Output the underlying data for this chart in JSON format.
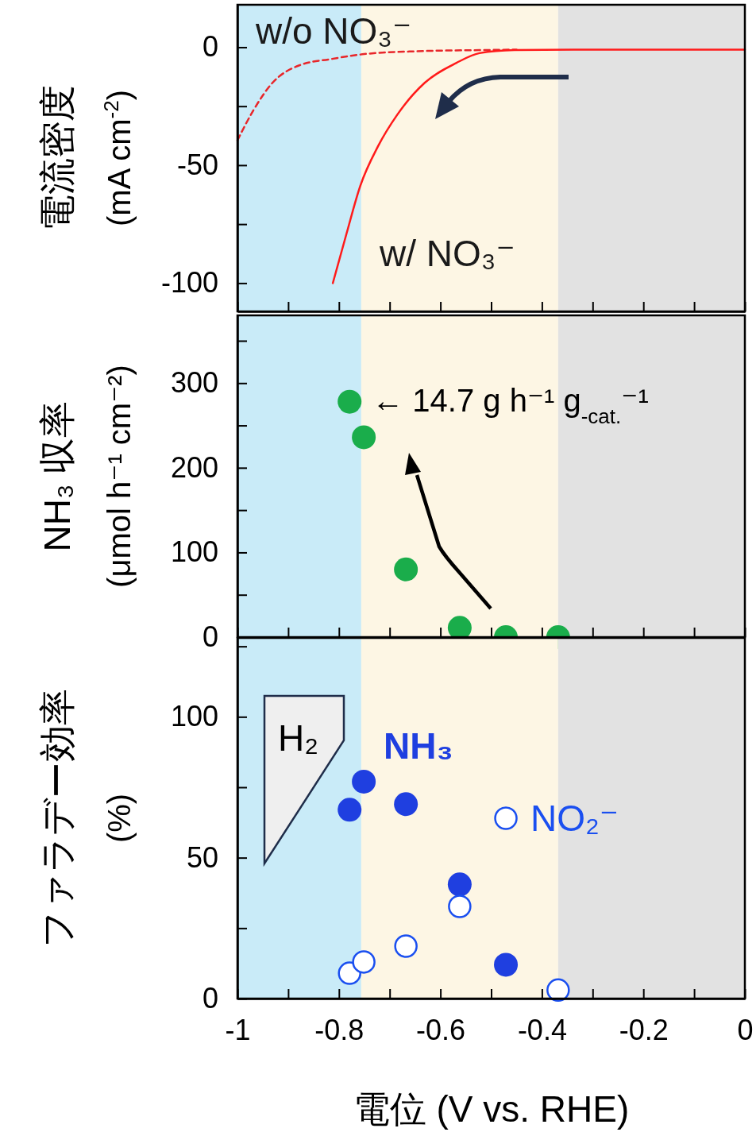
{
  "chart_data": [
    {
      "type": "line",
      "ylabel": "電流密度\n(mA cm$^{-2}$)",
      "xlim": [
        -1,
        0
      ],
      "ylim": [
        -112,
        18
      ],
      "tick_labels": "y",
      "xticks": [
        -1,
        {
          "value": -0.9,
          "label": null
        },
        -0.8,
        {
          "value": -0.7,
          "label": null
        },
        -0.6,
        {
          "value": -0.5,
          "label": null
        },
        -0.4,
        {
          "value": -0.3,
          "label": null
        },
        -0.2,
        {
          "value": -0.1,
          "label": null
        },
        0
      ],
      "yticks": [
        -100,
        {
          "value": -75,
          "label": null
        },
        -50,
        {
          "value": -25,
          "label": null
        },
        0
      ],
      "bands": [
        {
          "axis": "x",
          "from": -1,
          "to": -0.756,
          "color": "#c9ebf8"
        },
        {
          "axis": "x",
          "from": -0.756,
          "to": -0.368,
          "color": "#fdf6e4"
        },
        {
          "axis": "x",
          "from": -0.368,
          "to": 0,
          "color": "#e2e2e2"
        }
      ],
      "series": [
        {
          "name": "w/o NO₃⁻",
          "color": "#e8262a",
          "line_style": "dashed",
          "x": [
            -1,
            -0.969,
            -0.931,
            -0.877,
            -0.815,
            -0.754,
            -0.646,
            -0.515,
            -0.45
          ],
          "values": [
            -39.5,
            -26.9,
            -15.1,
            -7.6,
            -5,
            -3,
            -1.7,
            -1.2,
            -1
          ]
        },
        {
          "name": "w/ NO₃⁻",
          "color": "#ff1a1a",
          "line_style": "solid",
          "x": [
            -0.812,
            -0.785,
            -0.758,
            -0.723,
            -0.685,
            -0.631,
            -0.569,
            -0.523,
            -0.454,
            -0.338,
            0
          ],
          "values": [
            -100,
            -79,
            -58.8,
            -42,
            -28.6,
            -15.1,
            -6.7,
            -2.5,
            -1.2,
            -1,
            -1
          ]
        }
      ]
    },
    {
      "type": "scatter",
      "ylabel": "NH₃ 収率\n(μmol h⁻¹ cm⁻²)",
      "xlim": [
        -1,
        0
      ],
      "ylim": [
        0,
        380
      ],
      "tick_labels": "y",
      "marker": "circle",
      "xticks": [
        -1,
        {
          "value": -0.9,
          "label": null
        },
        -0.8,
        {
          "value": -0.7,
          "label": null
        },
        -0.6,
        {
          "value": -0.5,
          "label": null
        },
        -0.4,
        {
          "value": -0.3,
          "label": null
        },
        -0.2,
        {
          "value": -0.1,
          "label": null
        },
        0
      ],
      "yticks": [
        0,
        {
          "value": 50,
          "label": null
        },
        100,
        {
          "value": 150,
          "label": null
        },
        200,
        {
          "value": 250,
          "label": null
        },
        300,
        {
          "value": 350,
          "label": null
        }
      ],
      "bands": [
        {
          "axis": "x",
          "from": -1,
          "to": -0.756,
          "color": "#c9ebf8"
        },
        {
          "axis": "x",
          "from": -0.756,
          "to": -0.368,
          "color": "#fdf6e4"
        },
        {
          "axis": "x",
          "from": -0.368,
          "to": 0,
          "color": "#e2e2e2"
        }
      ],
      "annotations": [
        {
          "text": "← 14.7 g h⁻¹ g$_{-cat.}$⁻¹",
          "x": -0.779,
          "y": 278
        }
      ],
      "series": [
        {
          "color": "#1aad4b",
          "x": [
            -0.779,
            -0.751,
            -0.668,
            -0.562,
            -0.471,
            -0.368
          ],
          "values": [
            278,
            236,
            80,
            11,
            0,
            0
          ]
        }
      ]
    },
    {
      "type": "scatter",
      "xlabel": "電位 (V vs. RHE)",
      "ylabel": "ファラデー効率\n(%)",
      "xlim": [
        -1,
        0
      ],
      "ylim": [
        0,
        128
      ],
      "xticks": [
        -1,
        {
          "value": -0.9,
          "label": null
        },
        -0.8,
        {
          "value": -0.7,
          "label": null
        },
        -0.6,
        {
          "value": -0.5,
          "label": null
        },
        -0.4,
        {
          "value": -0.3,
          "label": null
        },
        -0.2,
        {
          "value": -0.1,
          "label": null
        },
        0
      ],
      "yticks": [
        0,
        {
          "value": 25,
          "label": null
        },
        50,
        {
          "value": 75,
          "label": null
        },
        100,
        {
          "value": 125,
          "label": null
        }
      ],
      "bands": [
        {
          "axis": "x",
          "from": -1,
          "to": -0.756,
          "color": "#c9ebf8"
        },
        {
          "axis": "x",
          "from": -0.756,
          "to": -0.368,
          "color": "#fdf6e4"
        },
        {
          "axis": "x",
          "from": -0.368,
          "to": 0,
          "color": "#e2e2e2"
        }
      ],
      "annotations": [
        "H₂"
      ],
      "series": [
        {
          "name": "NH₃",
          "color": "#1f3fe0",
          "marker": "circle",
          "x": [
            -0.779,
            -0.751,
            -0.668,
            -0.562,
            -0.471
          ],
          "values": [
            67,
            77,
            69,
            40.5,
            12
          ]
        },
        {
          "name": "NO₂⁻",
          "color": "#1a4ff0",
          "marker": "circle-open",
          "x": [
            -0.779,
            -0.751,
            -0.668,
            -0.562,
            -0.471,
            -0.368
          ],
          "values": [
            9,
            13,
            18.6,
            32.7,
            64,
            3
          ]
        }
      ]
    }
  ]
}
